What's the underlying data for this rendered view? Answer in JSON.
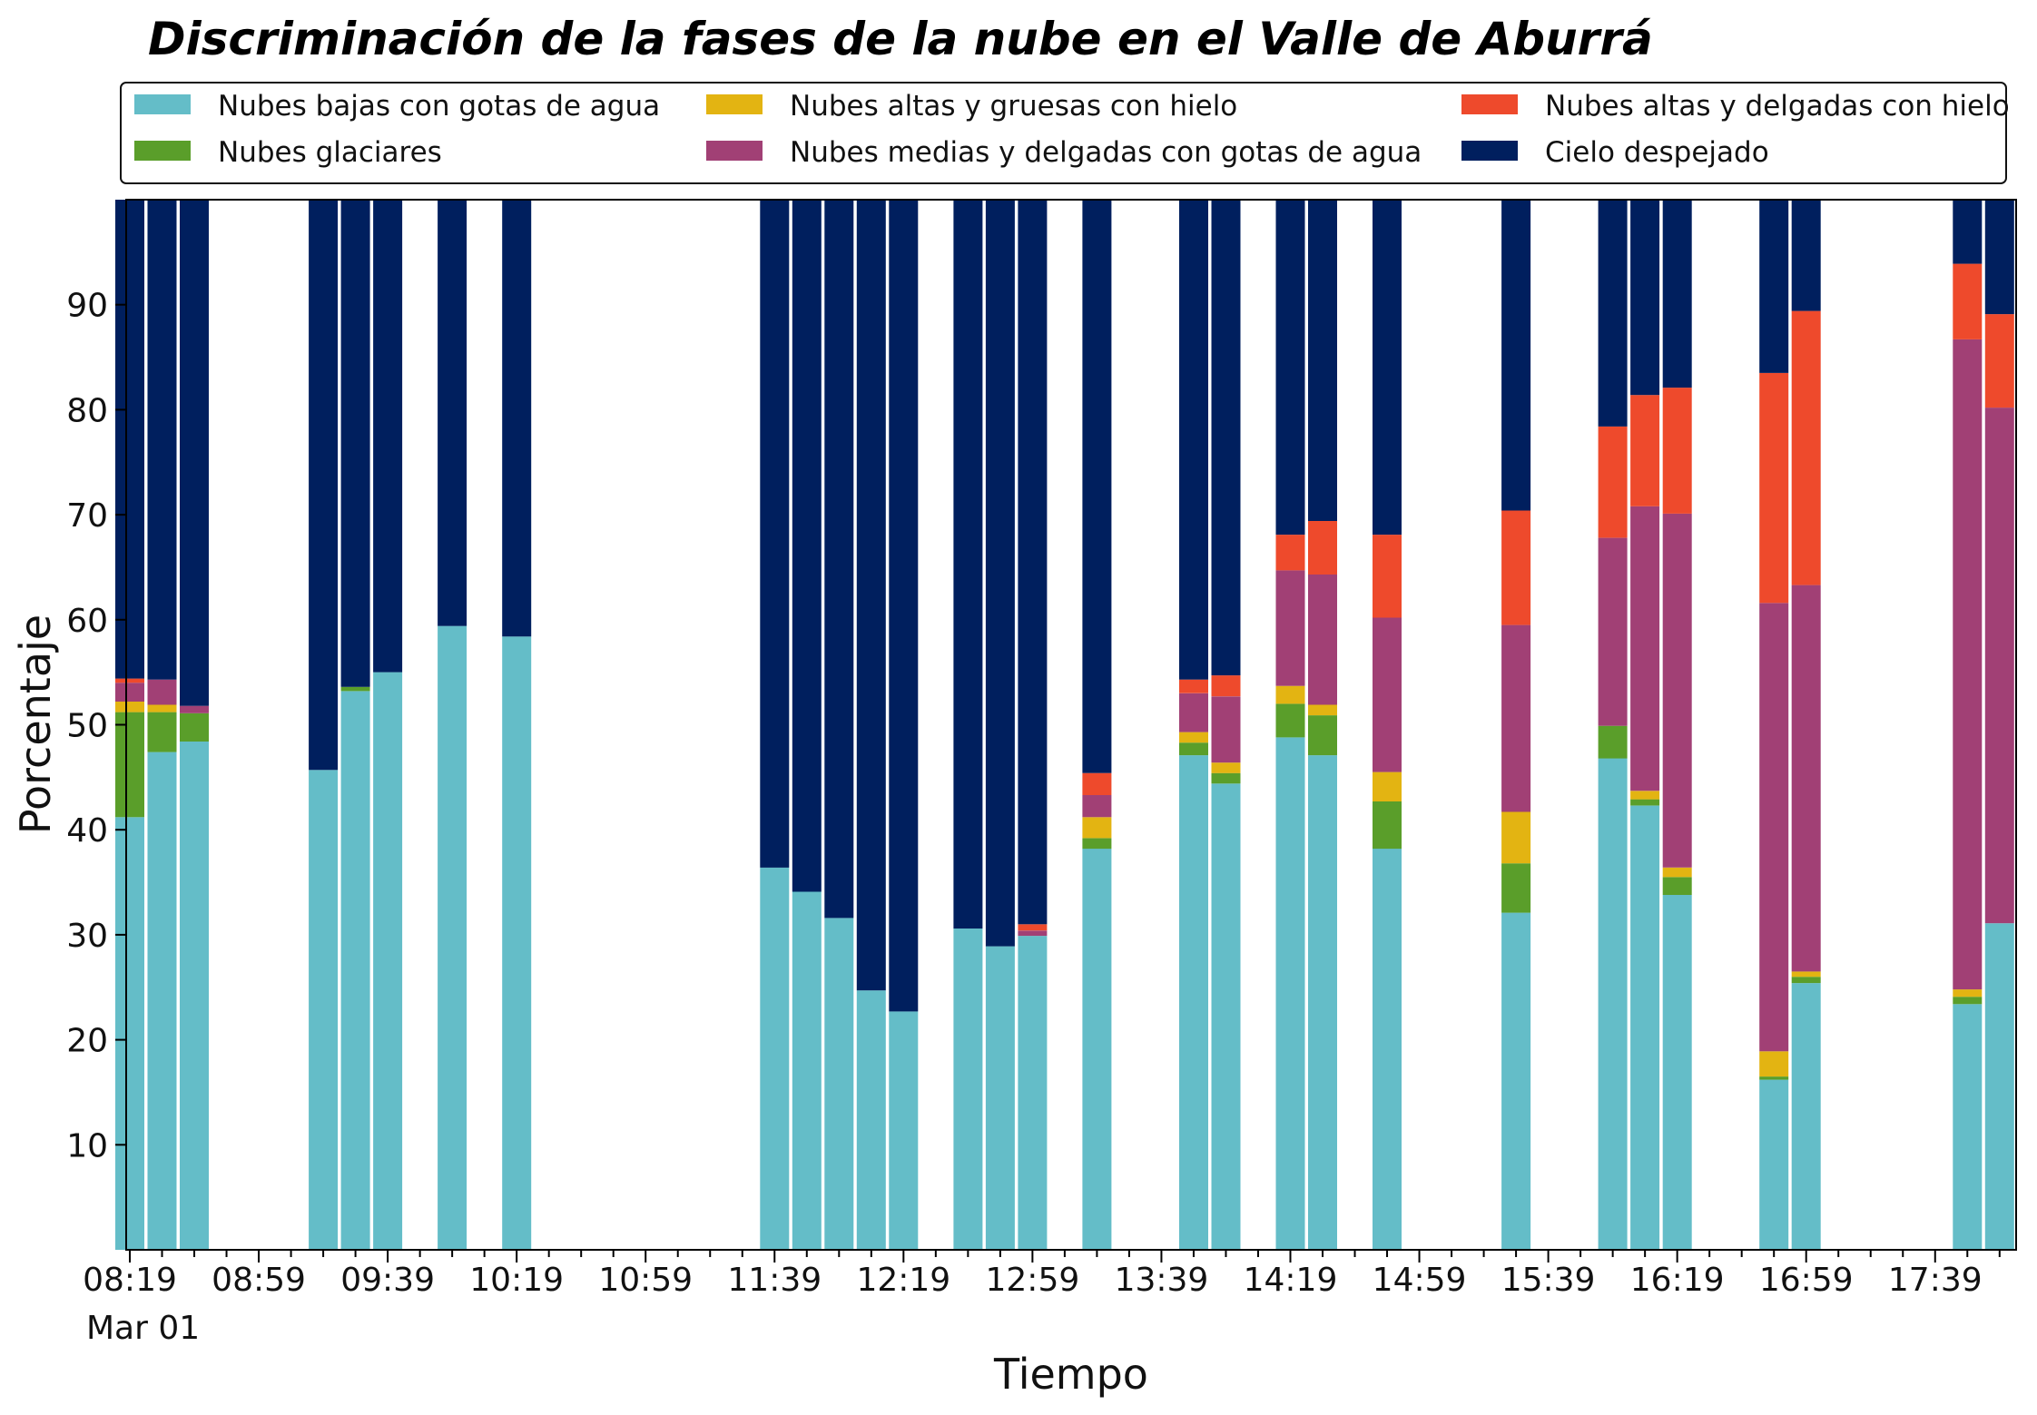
{
  "chart_data": {
    "type": "bar",
    "stacked": true,
    "title": "Discriminación de la fases de la nube en el Valle de Aburrá",
    "xlabel": "Tiempo",
    "ylabel": "Porcentaje",
    "ylim": [
      0,
      100
    ],
    "yticks": [
      10,
      20,
      30,
      40,
      50,
      60,
      70,
      80,
      90
    ],
    "xlim": [
      499,
      1083
    ],
    "xticks": [
      {
        "minute": 499,
        "label": "08:19"
      },
      {
        "minute": 539,
        "label": "08:59"
      },
      {
        "minute": 579,
        "label": "09:39"
      },
      {
        "minute": 619,
        "label": "10:19"
      },
      {
        "minute": 659,
        "label": "10:59"
      },
      {
        "minute": 699,
        "label": "11:39"
      },
      {
        "minute": 739,
        "label": "12:19"
      },
      {
        "minute": 779,
        "label": "12:59"
      },
      {
        "minute": 819,
        "label": "13:39"
      },
      {
        "minute": 859,
        "label": "14:19"
      },
      {
        "minute": 899,
        "label": "14:59"
      },
      {
        "minute": 939,
        "label": "15:39"
      },
      {
        "minute": 979,
        "label": "16:19"
      },
      {
        "minute": 1019,
        "label": "16:59"
      },
      {
        "minute": 1059,
        "label": "17:39"
      }
    ],
    "date_label": "Mar 01",
    "grid": false,
    "legend": {
      "position": "top",
      "columns": 3
    },
    "series": [
      {
        "name": "Nubes bajas con gotas de agua",
        "color": "#64bdc8"
      },
      {
        "name": "Nubes glaciares",
        "color": "#5a9e2a"
      },
      {
        "name": "Nubes altas y gruesas con hielo",
        "color": "#e3b412"
      },
      {
        "name": "Nubes medias y delgadas con gotas de agua",
        "color": "#a14075"
      },
      {
        "name": "Nubes altas y delgadas con hielo",
        "color": "#ee4a2c"
      },
      {
        "name": "Cielo despejado",
        "color": "#001f5e"
      }
    ],
    "bars": [
      {
        "time": "08:19",
        "values": [
          41.2,
          10.0,
          1.0,
          1.8,
          0.4,
          45.6
        ]
      },
      {
        "time": "08:29",
        "values": [
          47.4,
          3.8,
          0.7,
          2.4,
          0.0,
          45.7
        ]
      },
      {
        "time": "08:39",
        "values": [
          48.4,
          2.7,
          0.0,
          0.7,
          0.0,
          48.2
        ]
      },
      {
        "time": "09:19",
        "values": [
          45.7,
          0.0,
          0.0,
          0.0,
          0.0,
          54.3
        ]
      },
      {
        "time": "09:29",
        "values": [
          53.2,
          0.4,
          0.0,
          0.0,
          0.0,
          46.4
        ]
      },
      {
        "time": "09:39",
        "values": [
          55.0,
          0.0,
          0.0,
          0.0,
          0.0,
          45.0
        ]
      },
      {
        "time": "09:59",
        "values": [
          59.4,
          0.0,
          0.0,
          0.0,
          0.0,
          40.6
        ]
      },
      {
        "time": "10:19",
        "values": [
          58.4,
          0.0,
          0.0,
          0.0,
          0.0,
          41.6
        ]
      },
      {
        "time": "11:39",
        "values": [
          36.4,
          0.0,
          0.0,
          0.0,
          0.0,
          63.6
        ]
      },
      {
        "time": "11:49",
        "values": [
          34.1,
          0.0,
          0.0,
          0.0,
          0.0,
          65.9
        ]
      },
      {
        "time": "11:59",
        "values": [
          31.6,
          0.0,
          0.0,
          0.0,
          0.0,
          68.4
        ]
      },
      {
        "time": "12:09",
        "values": [
          24.7,
          0.0,
          0.0,
          0.0,
          0.0,
          75.3
        ]
      },
      {
        "time": "12:19",
        "values": [
          22.7,
          0.0,
          0.0,
          0.0,
          0.0,
          77.3
        ]
      },
      {
        "time": "12:39",
        "values": [
          30.6,
          0.0,
          0.0,
          0.0,
          0.0,
          69.4
        ]
      },
      {
        "time": "12:49",
        "values": [
          28.9,
          0.0,
          0.0,
          0.0,
          0.0,
          71.1
        ]
      },
      {
        "time": "12:59",
        "values": [
          29.9,
          0.0,
          0.0,
          0.5,
          0.6,
          69.0
        ]
      },
      {
        "time": "13:19",
        "values": [
          38.2,
          1.0,
          2.0,
          2.1,
          2.1,
          54.6
        ]
      },
      {
        "time": "13:49",
        "values": [
          47.1,
          1.2,
          1.0,
          3.7,
          1.3,
          45.7
        ]
      },
      {
        "time": "13:59",
        "values": [
          44.4,
          1.0,
          1.0,
          6.3,
          2.0,
          45.3
        ]
      },
      {
        "time": "14:19",
        "values": [
          48.8,
          3.2,
          1.7,
          11.0,
          3.4,
          31.9
        ]
      },
      {
        "time": "14:29",
        "values": [
          47.1,
          3.8,
          1.0,
          12.4,
          5.1,
          30.6
        ]
      },
      {
        "time": "14:49",
        "values": [
          38.2,
          4.5,
          2.8,
          14.7,
          7.9,
          31.9
        ]
      },
      {
        "time": "15:29",
        "values": [
          32.1,
          4.7,
          4.9,
          17.8,
          10.9,
          29.6
        ]
      },
      {
        "time": "15:59",
        "values": [
          46.8,
          3.1,
          0.0,
          17.9,
          10.6,
          21.6
        ]
      },
      {
        "time": "16:09",
        "values": [
          42.3,
          0.6,
          0.8,
          27.1,
          10.6,
          18.6
        ]
      },
      {
        "time": "16:19",
        "values": [
          33.8,
          1.7,
          0.9,
          33.7,
          12.0,
          17.9
        ]
      },
      {
        "time": "16:49",
        "values": [
          16.2,
          0.3,
          2.4,
          42.7,
          21.9,
          16.5
        ]
      },
      {
        "time": "16:59",
        "values": [
          25.4,
          0.6,
          0.5,
          36.8,
          26.1,
          10.6
        ]
      },
      {
        "time": "17:49",
        "values": [
          23.4,
          0.7,
          0.7,
          61.9,
          7.2,
          6.1
        ]
      },
      {
        "time": "17:59",
        "values": [
          31.1,
          0.0,
          0.0,
          49.1,
          8.9,
          10.9
        ]
      }
    ]
  }
}
